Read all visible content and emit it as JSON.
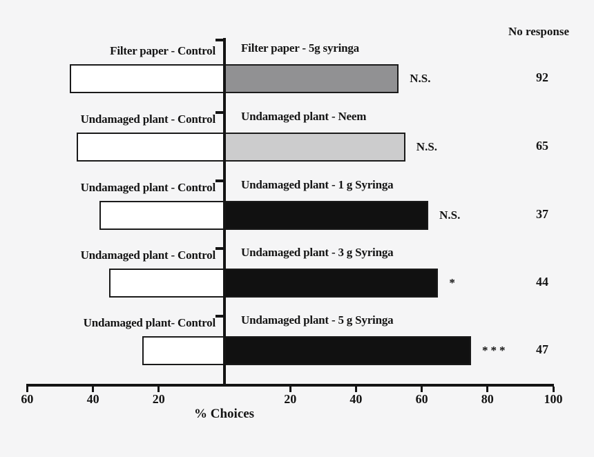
{
  "chart_data": {
    "type": "bar",
    "orientation": "horizontal-diverging",
    "xlabel": "%  Choices",
    "no_response_header": "No response",
    "axis": {
      "center_value": 0,
      "left_max": 60,
      "right_max": 100,
      "x_ticks": [
        -60,
        -40,
        -20,
        20,
        40,
        60,
        80,
        100
      ],
      "grid": false
    },
    "colors": {
      "background": "#f5f5f6",
      "axis_line": "#141414",
      "bar_border": "#1a1a1a",
      "control_fill": "#ffffff",
      "dark_gray": "#919193",
      "light_gray": "#cccccd",
      "black": "#111111"
    },
    "rows": [
      {
        "left_label": "Filter paper - Control",
        "right_label": "Filter paper - 5g syringa",
        "left_value": 47,
        "right_value": 53,
        "left_color": "#ffffff",
        "right_color": "#919193",
        "significance": "N.S.",
        "no_response": 92
      },
      {
        "left_label": "Undamaged plant - Control",
        "right_label": "Undamaged plant - Neem",
        "left_value": 45,
        "right_value": 55,
        "left_color": "#ffffff",
        "right_color": "#cccccd",
        "significance": "N.S.",
        "no_response": 65
      },
      {
        "left_label": "Undamaged plant - Control",
        "right_label": "Undamaged plant - 1 g Syringa",
        "left_value": 38,
        "right_value": 62,
        "left_color": "#ffffff",
        "right_color": "#111111",
        "significance": "N.S.",
        "no_response": 37
      },
      {
        "left_label": "Undamaged plant - Control",
        "right_label": "Undamaged plant - 3 g Syringa",
        "left_value": 35,
        "right_value": 65,
        "left_color": "#ffffff",
        "right_color": "#111111",
        "significance": "*",
        "no_response": 44
      },
      {
        "left_label": "Undamaged plant- Control",
        "right_label": "Undamaged plant - 5 g Syringa",
        "left_value": 25,
        "right_value": 75,
        "left_color": "#ffffff",
        "right_color": "#111111",
        "significance": "***",
        "no_response": 47
      }
    ]
  }
}
